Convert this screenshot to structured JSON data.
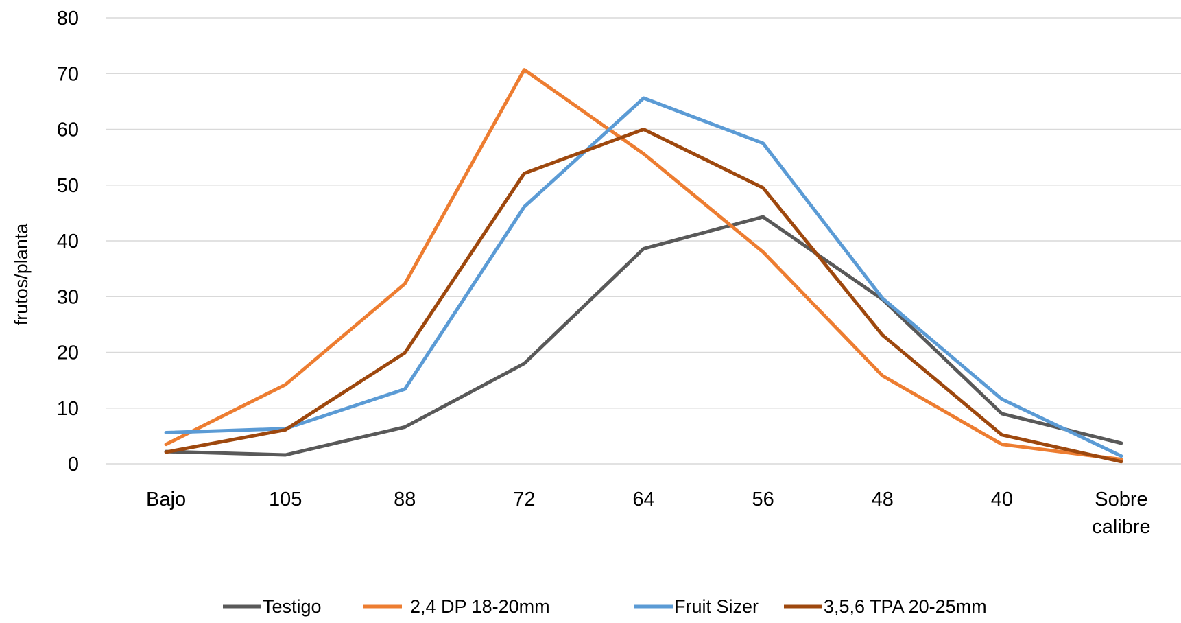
{
  "chart_data": {
    "type": "line",
    "categories": [
      "Bajo",
      "105",
      "88",
      "72",
      "64",
      "56",
      "48",
      "40",
      "Sobre calibre"
    ],
    "xlabel": "",
    "ylabel": "frutos/planta",
    "ylim": [
      0,
      80
    ],
    "yticks": [
      0,
      10,
      20,
      30,
      40,
      50,
      60,
      70,
      80
    ],
    "grid": true,
    "legend_position": "bottom",
    "series": [
      {
        "name": "Testigo",
        "color": "#595959",
        "values": [
          2.2,
          1.6,
          6.6,
          18.0,
          38.6,
          44.3,
          29.5,
          9.0,
          3.7
        ]
      },
      {
        "name": "2,4 DP 18-20mm",
        "color": "#ed7d31",
        "values": [
          3.5,
          14.2,
          32.3,
          70.7,
          55.6,
          38.0,
          15.8,
          3.5,
          0.8
        ]
      },
      {
        "name": "Fruit Sizer",
        "color": "#5b9bd5",
        "values": [
          5.6,
          6.3,
          13.4,
          46.1,
          65.6,
          57.5,
          29.7,
          11.6,
          1.4
        ]
      },
      {
        "name": "3,5,6 TPA 20-25mm",
        "color": "#9e480e",
        "values": [
          2.1,
          6.1,
          19.9,
          52.1,
          60.0,
          49.5,
          23.1,
          5.2,
          0.4
        ]
      }
    ]
  }
}
